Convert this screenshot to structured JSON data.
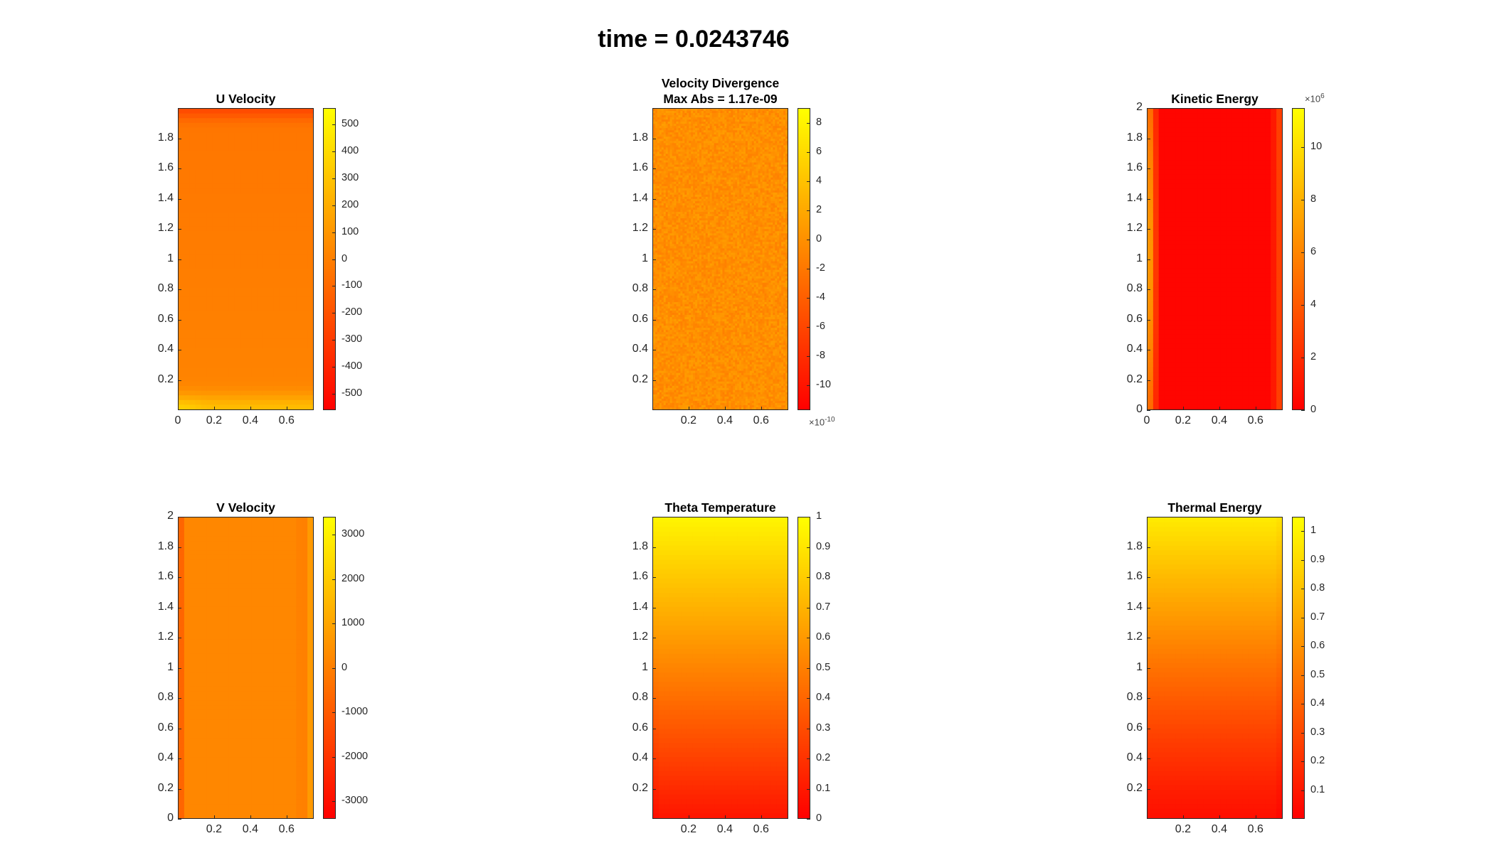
{
  "chart_data": {
    "suptitle": "time = 0.0243746",
    "panels": [
      {
        "id": "u",
        "type": "heatmap",
        "title_lines": [
          "U Velocity"
        ],
        "xlim": [
          0,
          0.75
        ],
        "ylim": [
          0,
          2
        ],
        "xticks": [
          0,
          0.2,
          0.4,
          0.6
        ],
        "yticks": [
          0.2,
          0.4,
          0.6,
          0.8,
          1,
          1.2,
          1.4,
          1.6,
          1.8
        ],
        "clim": [
          -560,
          560
        ],
        "cticks": [
          -500,
          -400,
          -300,
          -200,
          -100,
          0,
          100,
          200,
          300,
          400,
          500
        ],
        "cexp": "",
        "field": "u",
        "colormap": "autumn"
      },
      {
        "id": "div",
        "type": "heatmap",
        "title_lines": [
          "Velocity Divergence",
          "Max Abs = 1.17e-09"
        ],
        "xlim": [
          0,
          0.75
        ],
        "ylim": [
          0,
          2
        ],
        "xticks": [
          0.2,
          0.4,
          0.6
        ],
        "yticks": [
          0.2,
          0.4,
          0.6,
          0.8,
          1,
          1.2,
          1.4,
          1.6,
          1.8
        ],
        "clim": [
          -11.7,
          9.0
        ],
        "cticks": [
          -10,
          -8,
          -6,
          -4,
          -2,
          0,
          2,
          4,
          6,
          8
        ],
        "cexp": "-10",
        "field": "noise",
        "colormap": "autumn"
      },
      {
        "id": "ke",
        "type": "heatmap",
        "title_lines": [
          "Kinetic Energy"
        ],
        "xlim": [
          0,
          0.75
        ],
        "ylim": [
          0,
          2
        ],
        "xticks": [
          0,
          0.2,
          0.4,
          0.6
        ],
        "yticks": [
          0,
          0.2,
          0.4,
          0.6,
          0.8,
          1,
          1.2,
          1.4,
          1.6,
          1.8,
          2
        ],
        "clim": [
          0,
          11.5
        ],
        "cticks": [
          0,
          2,
          4,
          6,
          8,
          10
        ],
        "cexp": "6",
        "field": "ke",
        "colormap": "autumn"
      },
      {
        "id": "v",
        "type": "heatmap",
        "title_lines": [
          "V Velocity"
        ],
        "xlim": [
          0,
          0.75
        ],
        "ylim": [
          0,
          2
        ],
        "xticks": [
          0.2,
          0.4,
          0.6
        ],
        "yticks": [
          0,
          0.2,
          0.4,
          0.6,
          0.8,
          1,
          1.2,
          1.4,
          1.6,
          1.8,
          2
        ],
        "clim": [
          -3400,
          3400
        ],
        "cticks": [
          -3000,
          -2000,
          -1000,
          0,
          1000,
          2000,
          3000
        ],
        "cexp": "",
        "field": "v",
        "colormap": "autumn"
      },
      {
        "id": "theta",
        "type": "heatmap",
        "title_lines": [
          "Theta Temperature"
        ],
        "xlim": [
          0,
          0.75
        ],
        "ylim": [
          0,
          2
        ],
        "xticks": [
          0.2,
          0.4,
          0.6
        ],
        "yticks": [
          0.2,
          0.4,
          0.6,
          0.8,
          1,
          1.2,
          1.4,
          1.6,
          1.8
        ],
        "clim": [
          0,
          1
        ],
        "cticks": [
          0,
          0.1,
          0.2,
          0.3,
          0.4,
          0.5,
          0.6,
          0.7,
          0.8,
          0.9,
          1
        ],
        "cexp": "",
        "field": "theta",
        "colormap": "autumn"
      },
      {
        "id": "te",
        "type": "heatmap",
        "title_lines": [
          "Thermal Energy"
        ],
        "xlim": [
          0,
          0.75
        ],
        "ylim": [
          0,
          2
        ],
        "xticks": [
          0.2,
          0.4,
          0.6
        ],
        "yticks": [
          0.2,
          0.4,
          0.6,
          0.8,
          1,
          1.2,
          1.4,
          1.6,
          1.8
        ],
        "clim": [
          0,
          1.05
        ],
        "cticks": [
          0.1,
          0.2,
          0.3,
          0.4,
          0.5,
          0.6,
          0.7,
          0.8,
          0.9,
          1
        ],
        "cexp": "",
        "field": "te",
        "colormap": "autumn"
      }
    ]
  }
}
